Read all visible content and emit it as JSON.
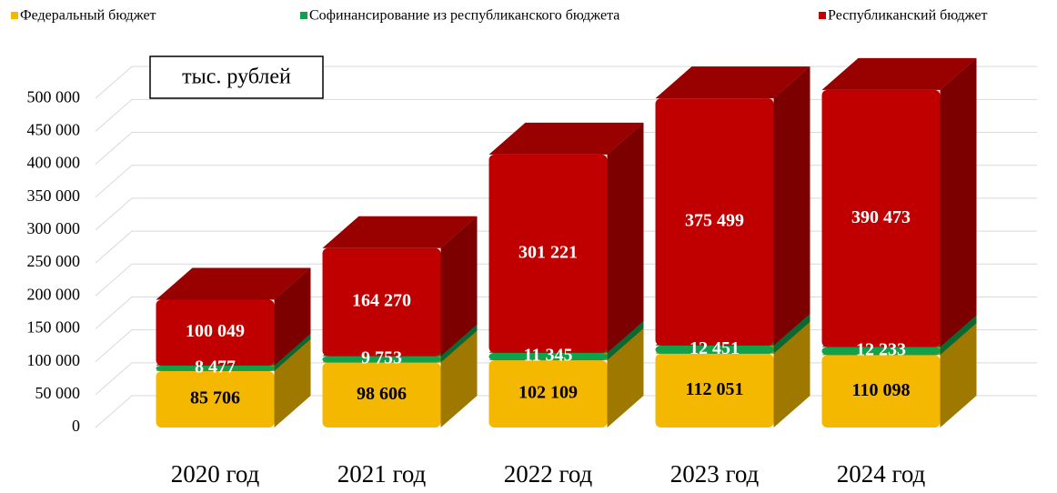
{
  "chart_data": {
    "type": "bar3d_stacked",
    "annotation": "тыс. рублей",
    "categories": [
      "2020 год",
      "2021 год",
      "2022 год",
      "2023 год",
      "2024 год"
    ],
    "series": [
      {
        "name": "Федеральный бюджет",
        "color": "#f5b800",
        "label_color": "#000000",
        "values": [
          85706,
          98606,
          102109,
          112051,
          110098
        ],
        "value_labels": [
          "85 706",
          "98 606",
          "102 109",
          "112 051",
          "110 098"
        ]
      },
      {
        "name": "Софинансирование из республиканского бюджета",
        "color": "#12a04a",
        "label_color": "#ffffff",
        "values": [
          8477,
          9753,
          11345,
          12451,
          12233
        ],
        "value_labels": [
          "8 477",
          "9 753",
          "11 345",
          "12 451",
          "12 233"
        ]
      },
      {
        "name": "Республиканский бюджет",
        "color": "#c00000",
        "label_color": "#ffffff",
        "values": [
          100049,
          164270,
          301221,
          375499,
          390473
        ],
        "value_labels": [
          "100 049",
          "164 270",
          "301 221",
          "375 499",
          "390 473"
        ]
      }
    ],
    "ylim": [
      0,
      550000
    ],
    "yticks": [
      0,
      {
        "value": 50000,
        "label": "50 000"
      },
      {
        "value": 100000,
        "label": "100 000"
      },
      {
        "value": 150000,
        "label": "150 000"
      },
      {
        "value": 200000,
        "label": "200 000"
      },
      {
        "value": 250000,
        "label": "250 000"
      },
      {
        "value": 300000,
        "label": "300 000"
      },
      {
        "value": 350000,
        "label": "350 000"
      },
      {
        "value": 400000,
        "label": "400 000"
      },
      {
        "value": 450000,
        "label": "450 000"
      },
      {
        "value": 500000,
        "label": "500 000"
      }
    ],
    "grid": true,
    "legend": "top"
  }
}
